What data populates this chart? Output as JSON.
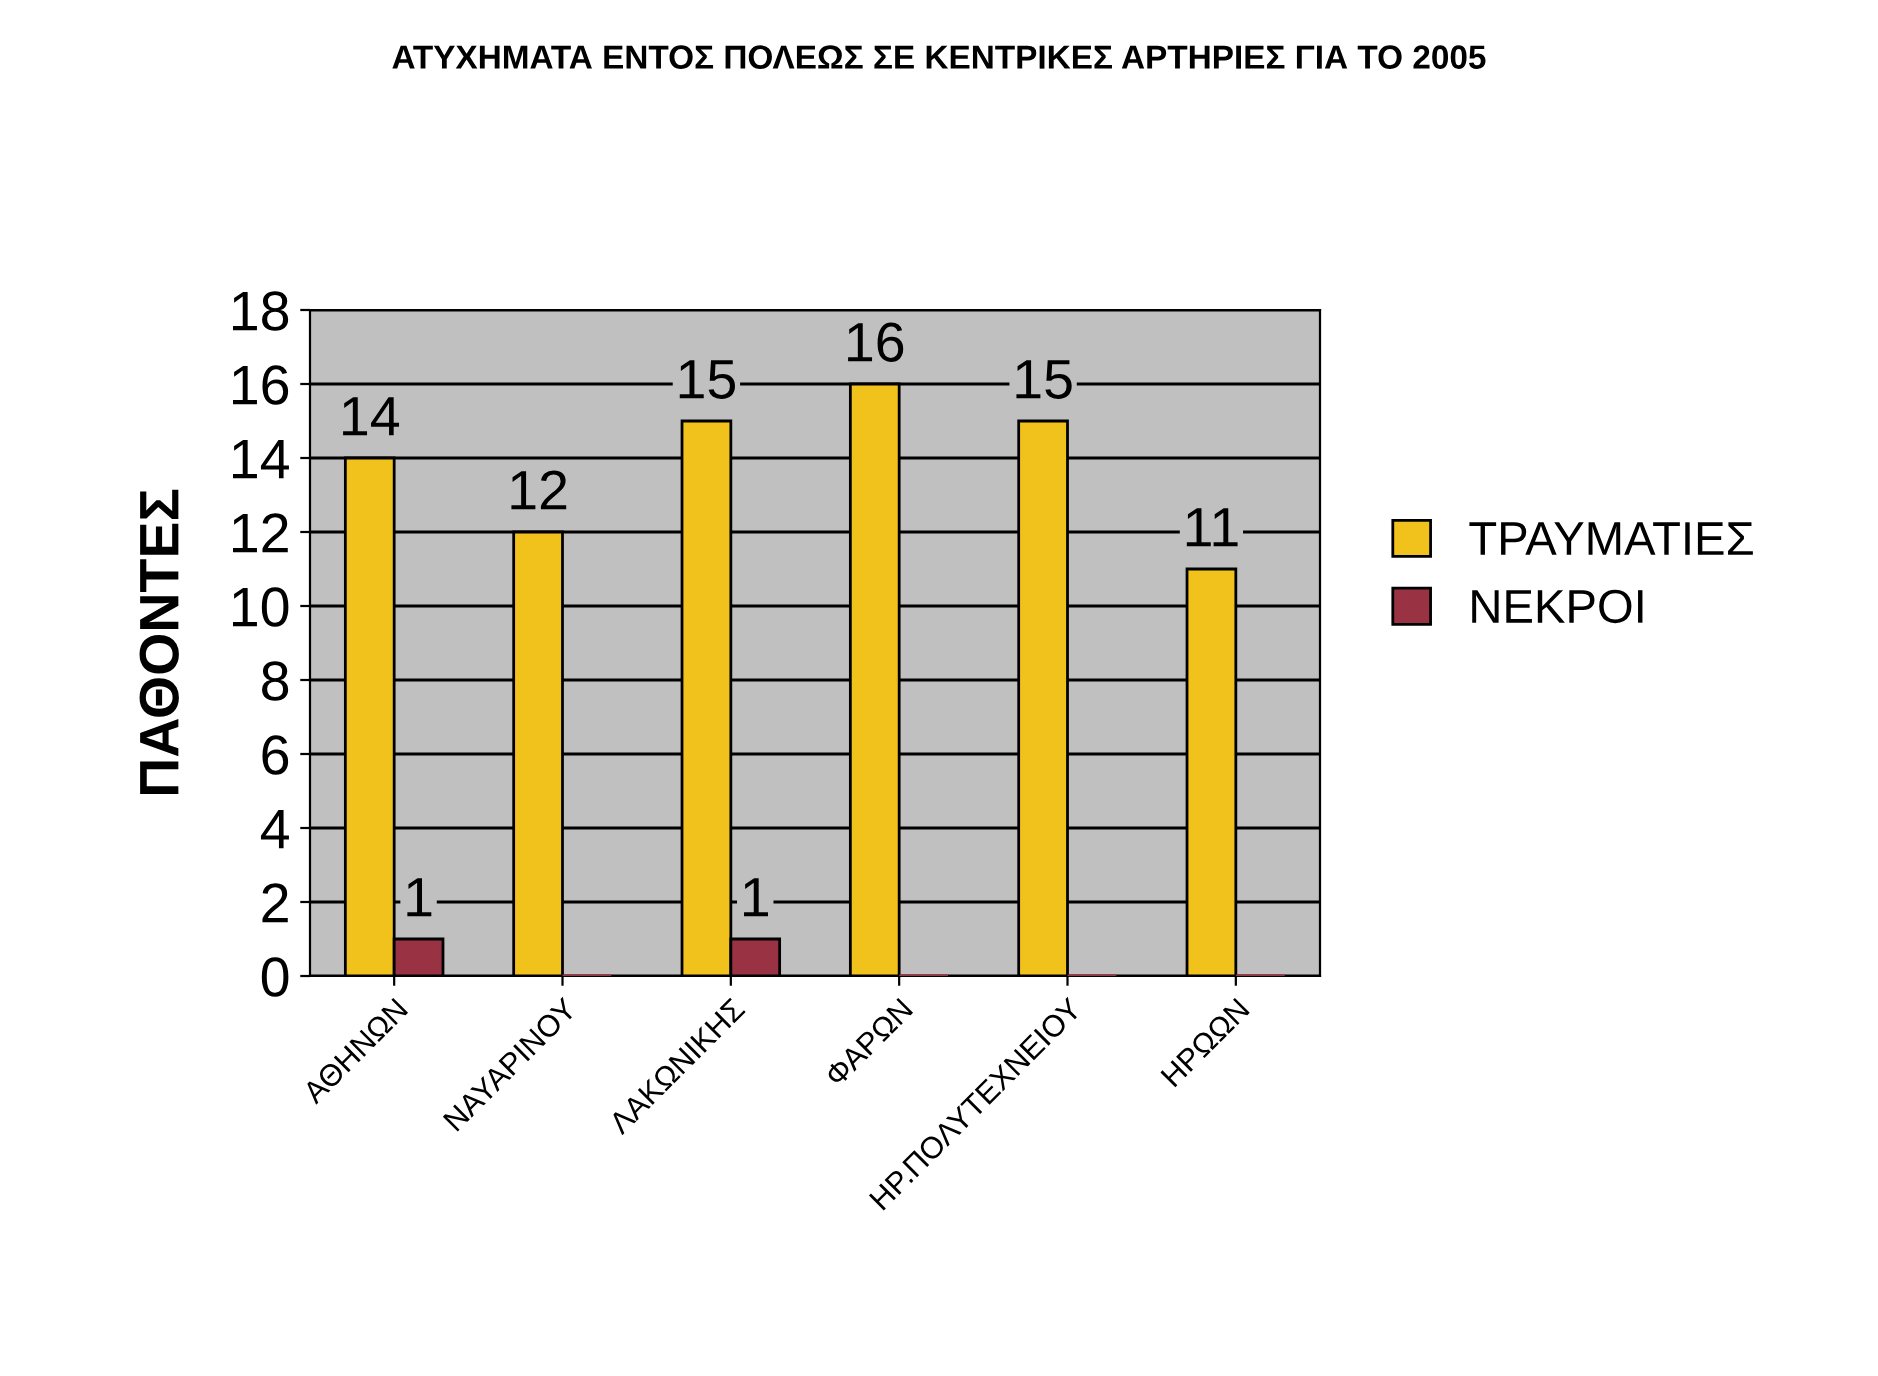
{
  "chart_data": {
    "type": "bar",
    "title": "ΑΤΥΧΗΜΑΤΑ ΕΝΤΟΣ ΠΟΛΕΩΣ ΣΕ ΚΕΝΤΡΙΚΕΣ ΑΡΤΗΡΙΕΣ ΓΙΑ ΤΟ 2005",
    "ylabel": "ΠΑΘΟΝΤΕΣ",
    "categories": [
      "ΑΘΗΝΩΝ",
      "ΝΑΥΑΡΙΝΟΥ",
      "ΛΑΚΩΝΙΚΗΣ",
      "ΦΑΡΩΝ",
      "ΗΡ.ΠΟΛΥΤΕΧΝΕΙΟΥ",
      "ΗΡΩΩΝ"
    ],
    "series": [
      {
        "name": "ΤΡΑΥΜΑΤΙΕΣ",
        "color": "#f2c21c",
        "values": [
          14,
          12,
          15,
          16,
          15,
          11
        ],
        "value_labels": [
          "14",
          "12",
          "15",
          "16",
          "15",
          "11"
        ]
      },
      {
        "name": "ΝΕΚΡΟΙ",
        "color": "#993344",
        "values": [
          1,
          0,
          1,
          0,
          0,
          0
        ],
        "value_labels": [
          "1",
          null,
          "1",
          null,
          null,
          null
        ]
      }
    ],
    "ylim": [
      0,
      18
    ],
    "yticks": [
      0,
      2,
      4,
      6,
      8,
      10,
      12,
      14,
      16,
      18
    ],
    "grid": "y",
    "legend": "right"
  }
}
